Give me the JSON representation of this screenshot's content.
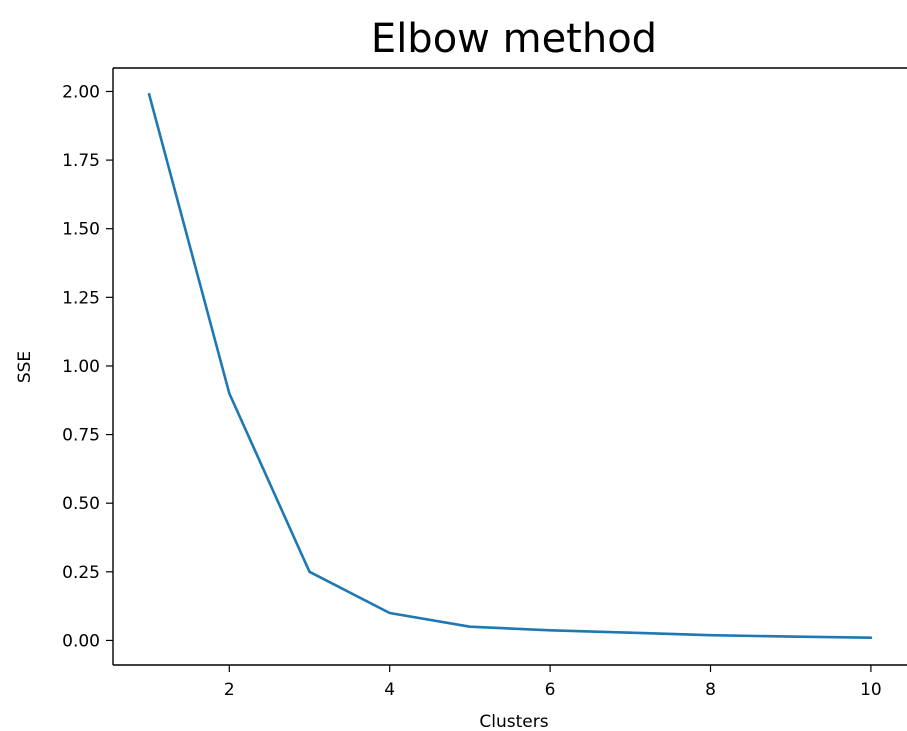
{
  "chart_data": {
    "type": "line",
    "title": "Elbow method",
    "xlabel": "Clusters",
    "ylabel": "SSE",
    "x": [
      1,
      2,
      3,
      4,
      5,
      6,
      7,
      8,
      9,
      10
    ],
    "series": [
      {
        "values": [
          1.99,
          0.9,
          0.25,
          0.1,
          0.05,
          0.037,
          0.028,
          0.019,
          0.014,
          0.01
        ]
      }
    ],
    "xticks": [
      2,
      4,
      6,
      8,
      10
    ],
    "yticks": [
      "0.00",
      "0.25",
      "0.50",
      "0.75",
      "1.00",
      "1.25",
      "1.50",
      "1.75",
      "2.00"
    ],
    "xlim": [
      0.55,
      10.45
    ],
    "ylim": [
      -0.0895,
      2.0855
    ],
    "grid": false,
    "line_color": "#1f77b4"
  }
}
